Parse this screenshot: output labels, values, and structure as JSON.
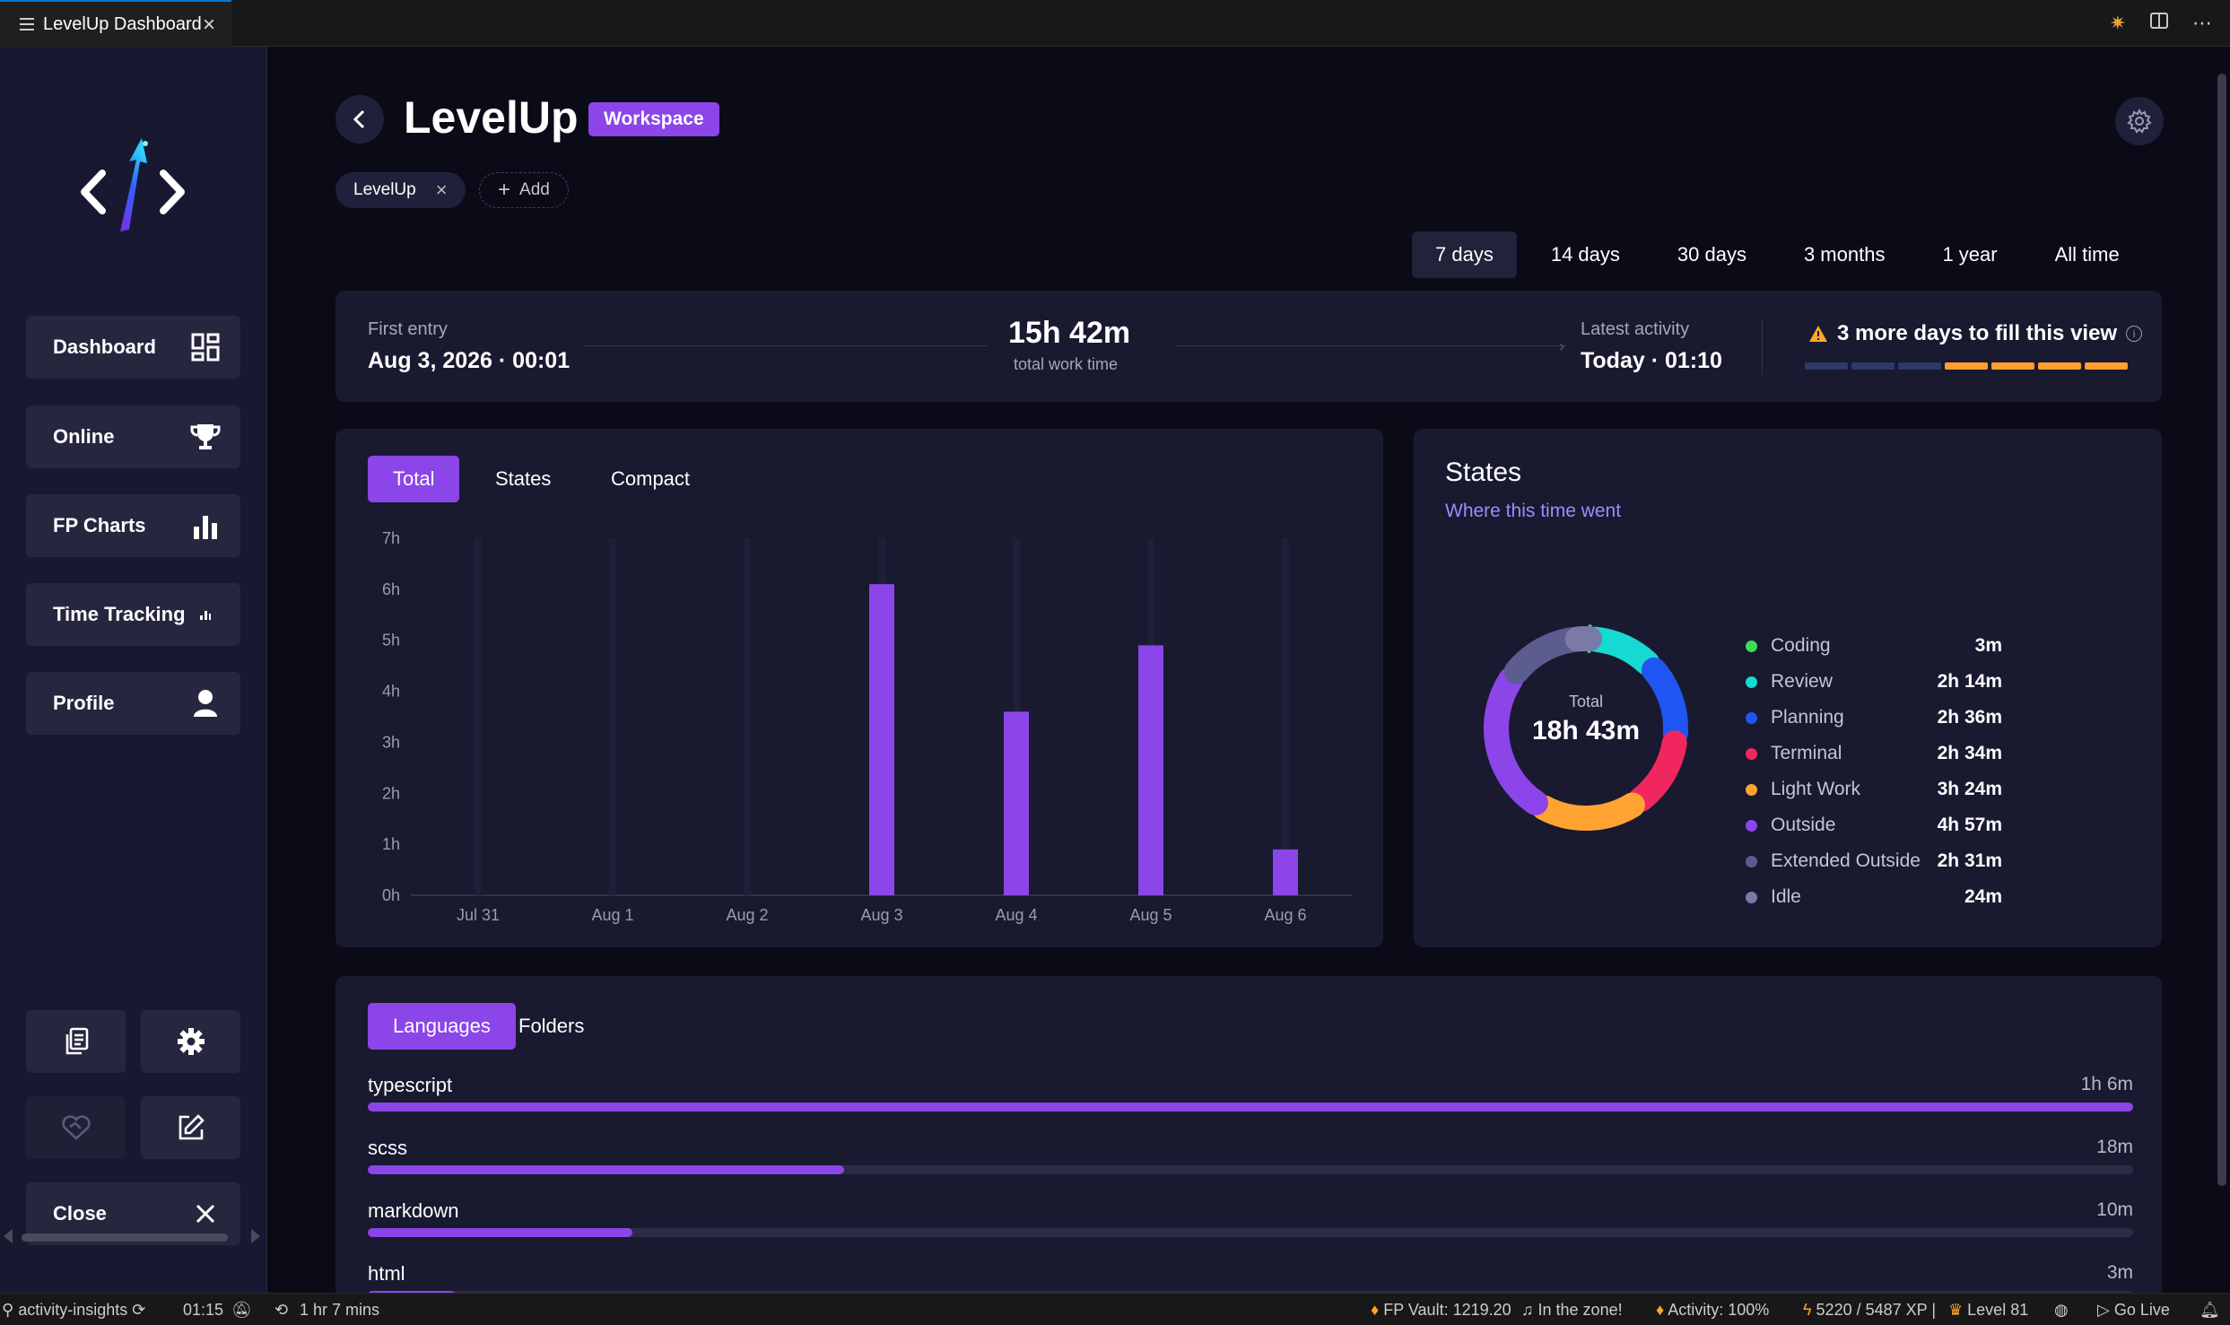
{
  "tab": {
    "title": "LevelUp Dashboard"
  },
  "sidebar": {
    "nav": [
      {
        "label": "Dashboard",
        "icon": "dashboard-grid-icon"
      },
      {
        "label": "Online",
        "icon": "trophy-icon"
      },
      {
        "label": "FP Charts",
        "icon": "bar-chart-icon"
      },
      {
        "label": "Time Tracking",
        "icon": "pulse-icon"
      },
      {
        "label": "Profile",
        "icon": "user-icon"
      }
    ],
    "close_label": "Close"
  },
  "header": {
    "title": "LevelUp",
    "badge": "Workspace",
    "tag": "LevelUp",
    "add_label": "Add"
  },
  "ranges": [
    "7 days",
    "14 days",
    "30 days",
    "3 months",
    "1 year",
    "All time"
  ],
  "summary": {
    "first_label": "First entry",
    "first_value": "Aug 3, 2026 · 00:01",
    "total_value": "15h 42m",
    "total_label": "total work time",
    "latest_label": "Latest activity",
    "latest_value": "Today · 01:10",
    "fill_message": "3 more days to fill this view",
    "fill_days": {
      "filled": 4,
      "total": 7
    },
    "colors": {
      "empty": "#2b3a6a",
      "filled": "#ff9f2e",
      "warning": "#ffa726"
    }
  },
  "chart_tabs": [
    "Total",
    "States",
    "Compact"
  ],
  "chart_data": {
    "type": "bar",
    "categories": [
      "Jul 31",
      "Aug 1",
      "Aug 2",
      "Aug 3",
      "Aug 4",
      "Aug 5",
      "Aug 6"
    ],
    "values": [
      0,
      0,
      0,
      6.1,
      3.6,
      4.9,
      0.9
    ],
    "y_ticks": [
      "0h",
      "1h",
      "2h",
      "3h",
      "4h",
      "5h",
      "6h",
      "7h"
    ],
    "ylim": [
      0,
      7
    ],
    "bar_color": "#8b45e8",
    "grid": false
  },
  "states": {
    "title": "States",
    "subtitle": "Where this time went",
    "total_label": "Total",
    "total_value": "18h 43m",
    "items": [
      {
        "name": "Coding",
        "value": "3m",
        "minutes": 3,
        "color": "#3ddc5a"
      },
      {
        "name": "Review",
        "value": "2h 14m",
        "minutes": 134,
        "color": "#16d9d2"
      },
      {
        "name": "Planning",
        "value": "2h 36m",
        "minutes": 156,
        "color": "#1f56f2"
      },
      {
        "name": "Terminal",
        "value": "2h 34m",
        "minutes": 154,
        "color": "#f2265f"
      },
      {
        "name": "Light Work",
        "value": "3h 24m",
        "minutes": 204,
        "color": "#ffa332"
      },
      {
        "name": "Outside",
        "value": "4h 57m",
        "minutes": 297,
        "color": "#8b45e8"
      },
      {
        "name": "Extended Outside",
        "value": "2h 31m",
        "minutes": 151,
        "color": "#5c5c8e"
      },
      {
        "name": "Idle",
        "value": "24m",
        "minutes": 24,
        "color": "#7a7aa6"
      }
    ]
  },
  "lang_tabs": [
    "Languages",
    "Folders"
  ],
  "languages": [
    {
      "name": "typescript",
      "duration": "1h 6m",
      "ratio": 1.0
    },
    {
      "name": "scss",
      "duration": "18m",
      "ratio": 0.27
    },
    {
      "name": "markdown",
      "duration": "10m",
      "ratio": 0.15
    },
    {
      "name": "html",
      "duration": "3m",
      "ratio": 0.05
    }
  ],
  "status": {
    "left": "activity-insights",
    "clock": "01:15",
    "timer": "1 hr 7 mins",
    "vault": "FP Vault: 1219.20",
    "zone": "In the zone!",
    "activity": "Activity: 100%",
    "xp": "5220 / 5487 XP |",
    "level": "Level 81",
    "golive": "Go Live"
  }
}
